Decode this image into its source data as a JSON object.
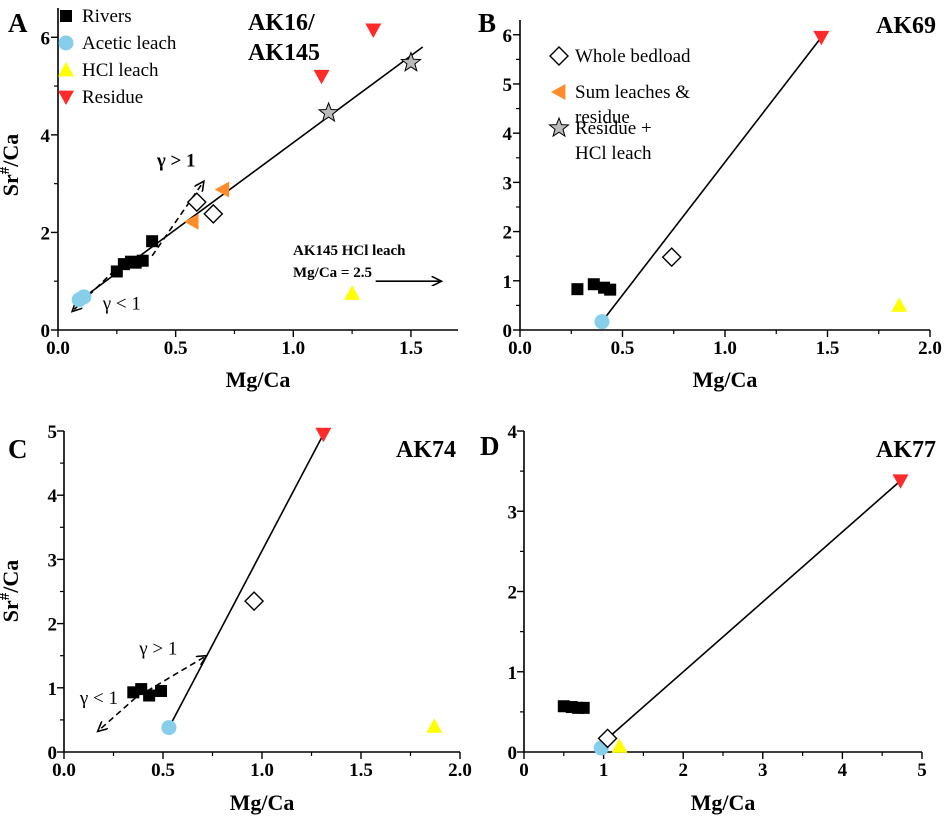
{
  "chart_data": [
    {
      "type": "scatter",
      "panel_label": "A",
      "title_lines": [
        "AK16/",
        "AK145"
      ],
      "xlabel": "Mg/Ca",
      "ylabel": "Sr#/Ca",
      "xlim": [
        0.0,
        1.7
      ],
      "ylim": [
        0,
        6.6
      ],
      "xticks": [
        "0.0",
        "0.5",
        "1.0",
        "1.5"
      ],
      "yticks": [
        "0",
        "2",
        "4",
        "6"
      ],
      "legend": [
        {
          "name": "Rivers",
          "marker": "square",
          "color": "#000000"
        },
        {
          "name": "Acetic leach",
          "marker": "circle",
          "color": "#87ceeb"
        },
        {
          "name": "HCl leach",
          "marker": "triangle-up",
          "color": "#ffff00"
        },
        {
          "name": "Residue",
          "marker": "triangle-down",
          "color": "#ff2a2a"
        }
      ],
      "series": [
        {
          "name": "Rivers",
          "marker": "square",
          "color": "#000000",
          "x": [
            0.25,
            0.28,
            0.31,
            0.33,
            0.36,
            0.4
          ],
          "y": [
            1.2,
            1.35,
            1.4,
            1.38,
            1.42,
            1.82
          ]
        },
        {
          "name": "Acetic leach",
          "marker": "circle",
          "color": "#87ceeb",
          "x": [
            0.09,
            0.11
          ],
          "y": [
            0.62,
            0.68
          ]
        },
        {
          "name": "HCl leach",
          "marker": "triangle-up",
          "color": "#ffff00",
          "x": [
            1.25
          ],
          "y": [
            0.75
          ]
        },
        {
          "name": "Residue",
          "marker": "triangle-down",
          "color": "#ff2a2a",
          "x": [
            1.12,
            1.34
          ],
          "y": [
            5.2,
            6.15
          ]
        },
        {
          "name": "Whole bedload",
          "marker": "diamond",
          "color": "#ffffff",
          "x": [
            0.59,
            0.66
          ],
          "y": [
            2.62,
            2.38
          ]
        },
        {
          "name": "Sum leaches & residue",
          "marker": "triangle-left",
          "color": "#ff8c2a",
          "x": [
            0.57,
            0.7
          ],
          "y": [
            2.22,
            2.88
          ]
        },
        {
          "name": "Residue + HCl leach",
          "marker": "star",
          "color": "#bbbbbb",
          "x": [
            1.15,
            1.5
          ],
          "y": [
            4.45,
            5.48
          ]
        }
      ],
      "lines": [
        {
          "x": [
            0.09,
            1.55
          ],
          "y": [
            0.6,
            5.8
          ]
        }
      ],
      "arrows": [
        {
          "from": [
            0.4,
            1.52
          ],
          "to": [
            0.62,
            3.05
          ],
          "label": "γ > 1",
          "label_at": [
            0.42,
            3.35
          ],
          "dashed": true
        },
        {
          "from": [
            0.24,
            1.22
          ],
          "to": [
            0.06,
            0.38
          ],
          "label": "γ < 1",
          "label_at": [
            0.19,
            0.42
          ],
          "dashed": true
        },
        {
          "from": [
            1.35,
            1.0
          ],
          "to": [
            1.63,
            1.0
          ],
          "dashed": false
        }
      ],
      "annotations": [
        "AK145 HCl leach",
        "Mg/Ca = 2.5"
      ]
    },
    {
      "type": "scatter",
      "panel_label": "B",
      "title_lines": [
        "AK69"
      ],
      "xlabel": "Mg/Ca",
      "ylabel": "",
      "xlim": [
        0.0,
        2.0
      ],
      "ylim": [
        0,
        6.3
      ],
      "xticks": [
        "0.0",
        "0.5",
        "1.0",
        "1.5",
        "2.0"
      ],
      "yticks": [
        "0",
        "1",
        "2",
        "3",
        "4",
        "5",
        "6"
      ],
      "legend": [
        {
          "name": "Whole bedload",
          "marker": "diamond",
          "color": "#ffffff"
        },
        {
          "name": "Sum leaches &",
          "name2": "residue",
          "marker": "triangle-left",
          "color": "#ff8c2a"
        },
        {
          "name": "Residue +",
          "name2": "HCl leach",
          "marker": "star",
          "color": "#bbbbbb"
        }
      ],
      "series": [
        {
          "name": "Rivers",
          "marker": "square",
          "color": "#000000",
          "x": [
            0.28,
            0.36,
            0.41,
            0.44
          ],
          "y": [
            0.83,
            0.93,
            0.86,
            0.82
          ]
        },
        {
          "name": "Acetic leach",
          "marker": "circle",
          "color": "#87ceeb",
          "x": [
            0.4
          ],
          "y": [
            0.17
          ]
        },
        {
          "name": "HCl leach",
          "marker": "triangle-up",
          "color": "#ffff00",
          "x": [
            1.85
          ],
          "y": [
            0.5
          ]
        },
        {
          "name": "Residue",
          "marker": "triangle-down",
          "color": "#ff2a2a",
          "x": [
            1.47
          ],
          "y": [
            5.95
          ]
        },
        {
          "name": "Whole bedload",
          "marker": "diamond",
          "color": "#ffffff",
          "x": [
            0.74
          ],
          "y": [
            1.48
          ]
        }
      ],
      "lines": [
        {
          "x": [
            0.4,
            1.47
          ],
          "y": [
            0.17,
            5.95
          ]
        }
      ],
      "arrows": [],
      "annotations": []
    },
    {
      "type": "scatter",
      "panel_label": "C",
      "title_lines": [
        "AK74"
      ],
      "xlabel": "Mg/Ca",
      "ylabel": "Sr#/Ca",
      "xlim": [
        0.0,
        2.0
      ],
      "ylim": [
        0,
        5.0
      ],
      "xticks": [
        "0.0",
        "0.5",
        "1.0",
        "1.5",
        "2.0"
      ],
      "yticks": [
        "0",
        "1",
        "2",
        "3",
        "4",
        "5"
      ],
      "legend": [],
      "series": [
        {
          "name": "Rivers",
          "marker": "square",
          "color": "#000000",
          "x": [
            0.35,
            0.39,
            0.43,
            0.49
          ],
          "y": [
            0.93,
            0.98,
            0.88,
            0.95
          ]
        },
        {
          "name": "Acetic leach",
          "marker": "circle",
          "color": "#87ceeb",
          "x": [
            0.53
          ],
          "y": [
            0.38
          ]
        },
        {
          "name": "HCl leach",
          "marker": "triangle-up",
          "color": "#ffff00",
          "x": [
            1.87
          ],
          "y": [
            0.4
          ]
        },
        {
          "name": "Residue",
          "marker": "triangle-down",
          "color": "#ff2a2a",
          "x": [
            1.31
          ],
          "y": [
            4.95
          ]
        },
        {
          "name": "Whole bedload",
          "marker": "diamond",
          "color": "#ffffff",
          "x": [
            0.96
          ],
          "y": [
            2.35
          ]
        }
      ],
      "lines": [
        {
          "x": [
            0.53,
            1.31
          ],
          "y": [
            0.38,
            4.95
          ]
        }
      ],
      "arrows": [
        {
          "from": [
            0.42,
            0.95
          ],
          "to": [
            0.72,
            1.5
          ],
          "label": "γ > 1",
          "label_at": [
            0.38,
            1.52
          ],
          "dashed": true
        },
        {
          "from": [
            0.4,
            0.95
          ],
          "to": [
            0.17,
            0.32
          ],
          "label": "γ < 1",
          "label_at": [
            0.08,
            0.75
          ],
          "dashed": true
        }
      ],
      "annotations": []
    },
    {
      "type": "scatter",
      "panel_label": "D",
      "title_lines": [
        "AK77"
      ],
      "xlabel": "Mg/Ca",
      "ylabel": "",
      "xlim": [
        0,
        5
      ],
      "ylim": [
        0,
        4
      ],
      "xticks": [
        "0",
        "1",
        "2",
        "3",
        "4",
        "5"
      ],
      "yticks": [
        "0",
        "1",
        "2",
        "3",
        "4"
      ],
      "legend": [],
      "series": [
        {
          "name": "Rivers",
          "marker": "square",
          "color": "#000000",
          "x": [
            0.5,
            0.6,
            0.68,
            0.75
          ],
          "y": [
            0.57,
            0.56,
            0.55,
            0.55
          ]
        },
        {
          "name": "Acetic leach",
          "marker": "circle",
          "color": "#87ceeb",
          "x": [
            0.97
          ],
          "y": [
            0.05
          ]
        },
        {
          "name": "HCl leach",
          "marker": "triangle-up",
          "color": "#ffff00",
          "x": [
            1.2
          ],
          "y": [
            0.07
          ]
        },
        {
          "name": "Residue",
          "marker": "triangle-down",
          "color": "#ff2a2a",
          "x": [
            4.73
          ],
          "y": [
            3.38
          ]
        },
        {
          "name": "Whole bedload",
          "marker": "diamond",
          "color": "#ffffff",
          "x": [
            1.05
          ],
          "y": [
            0.17
          ]
        }
      ],
      "lines": [
        {
          "x": [
            1.05,
            4.73
          ],
          "y": [
            0.17,
            3.38
          ]
        }
      ],
      "arrows": [],
      "annotations": []
    }
  ]
}
